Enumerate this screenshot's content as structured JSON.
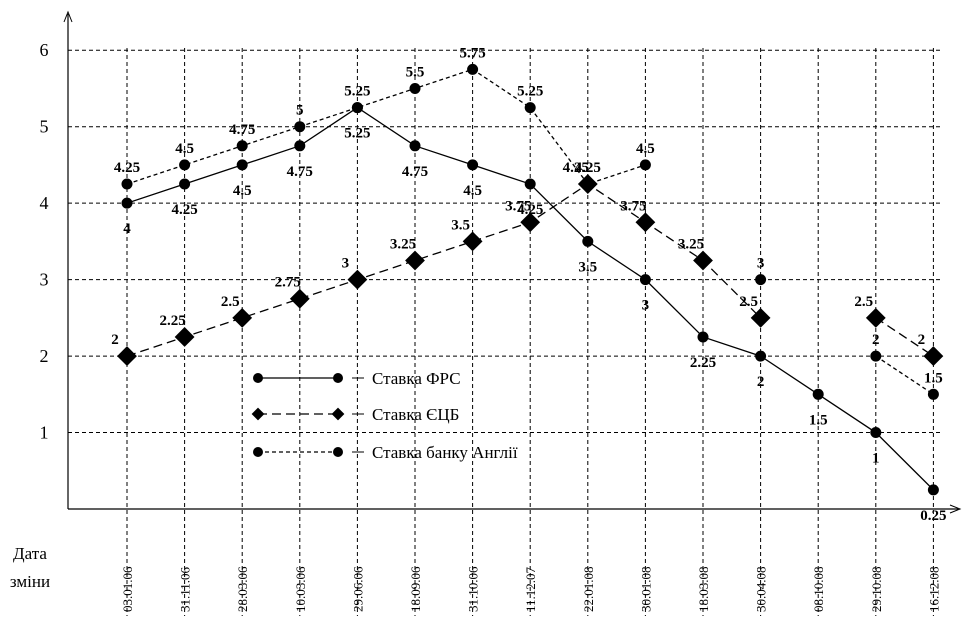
{
  "chart_data": {
    "type": "line",
    "xlabel": "Дата зміни",
    "categories": [
      "03.01.06",
      "31.11.06",
      "28.03.06",
      "10.03.06",
      "29.06.06",
      "18.09.06",
      "31.10.06",
      "11.12.07",
      "22.01.08",
      "30.01.08",
      "18.03.08",
      "30.04.08",
      "08.10.08",
      "29.10.08",
      "16.12.08"
    ],
    "series": [
      {
        "name": "Ставка ФРС",
        "color": "#000000",
        "dash": "solid",
        "marker": "circle",
        "values": [
          4,
          4.25,
          4.5,
          4.75,
          5.25,
          4.75,
          4.5,
          4.25,
          3.5,
          3,
          2.25,
          2,
          1.5,
          1,
          0.25
        ]
      },
      {
        "name": "Ставка ЄЦБ",
        "color": "#000000",
        "dash": "dashed",
        "marker": "diamond",
        "values": [
          2,
          2.25,
          2.5,
          2.75,
          3,
          3.25,
          3.5,
          3.75,
          4.25,
          3.75,
          3.25,
          2.5,
          null,
          2.5,
          2
        ]
      },
      {
        "name": "Ставка банку Англії",
        "color": "#000000",
        "dash": "dotted",
        "marker": "circle",
        "values": [
          4.25,
          4.5,
          4.75,
          5,
          5.25,
          5.5,
          5.75,
          5.25,
          4.25,
          4.5,
          null,
          3,
          null,
          2,
          1.5
        ]
      }
    ],
    "ylim": [
      0,
      6.5
    ],
    "yticks": [
      1,
      2,
      3,
      4,
      5,
      6
    ],
    "grid": true
  }
}
